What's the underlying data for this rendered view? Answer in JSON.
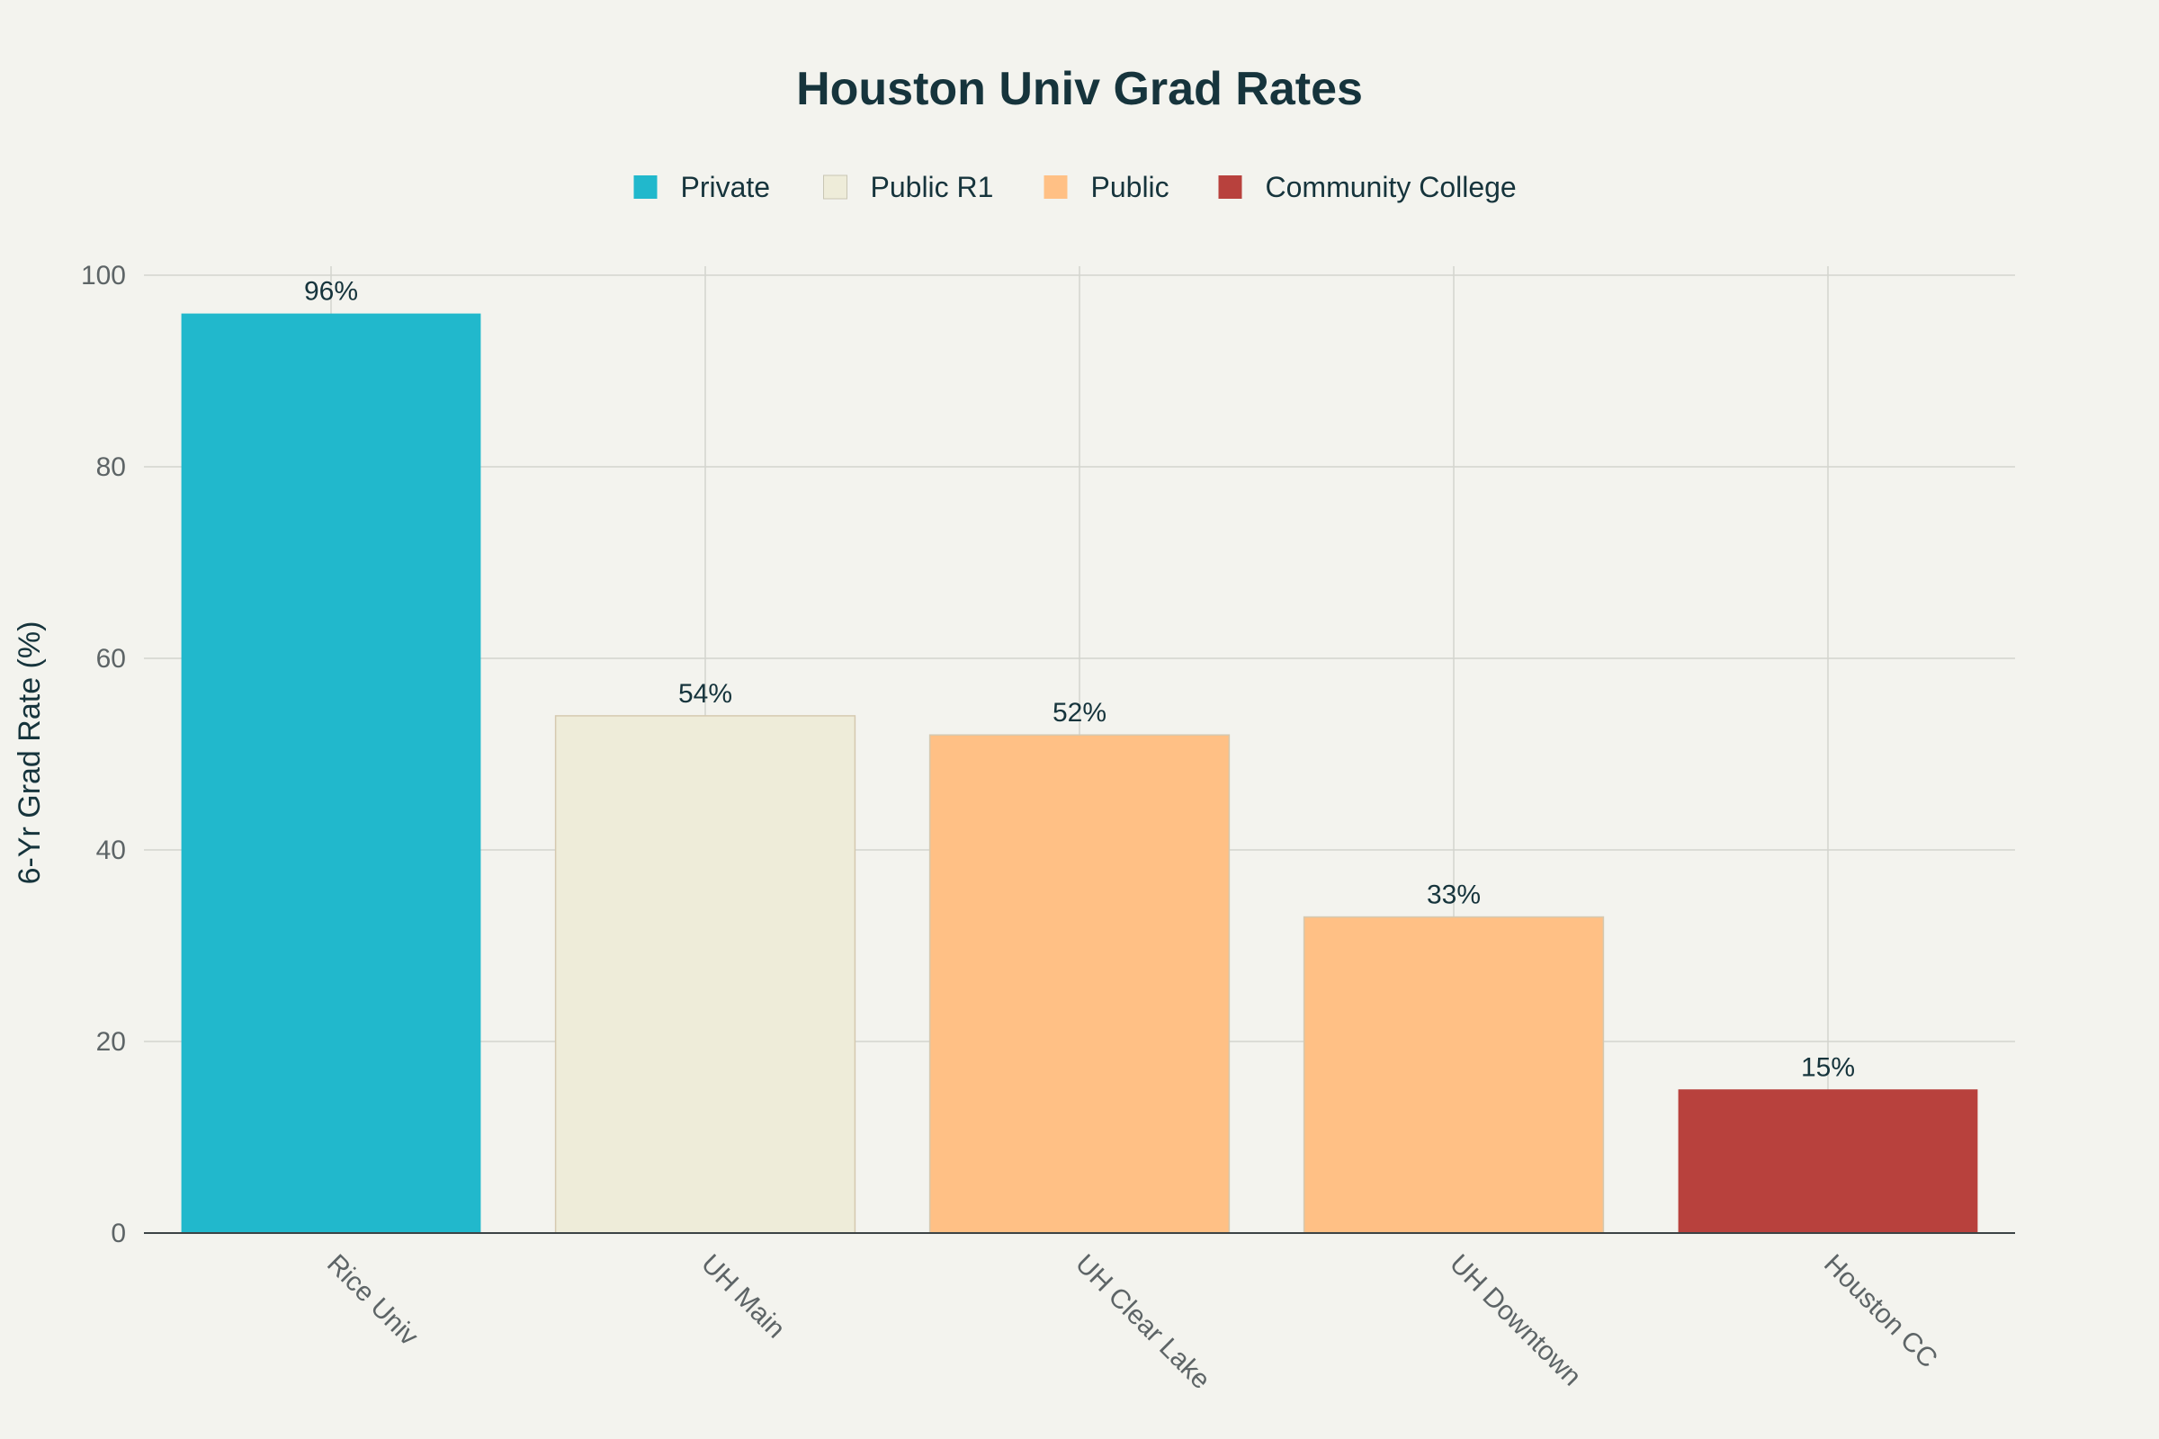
{
  "chart_data": {
    "type": "bar",
    "title": "Houston Univ Grad Rates",
    "ylabel": "6-Yr Grad Rate (%)",
    "xlabel": "",
    "ylim": [
      0,
      100
    ],
    "yticks": [
      0,
      20,
      40,
      60,
      80,
      100
    ],
    "grid": true,
    "legend_position": "top-center",
    "categories": [
      "Rice Univ",
      "UH Main",
      "UH Clear Lake",
      "UH Downtown",
      "Houston CC"
    ],
    "values": [
      96,
      54,
      52,
      33,
      15
    ],
    "data_labels": [
      "96%",
      "54%",
      "52%",
      "33%",
      "15%"
    ],
    "bar_groups": [
      "Private",
      "Public R1",
      "Public",
      "Public",
      "Community College"
    ],
    "legend": [
      {
        "name": "Private",
        "color": "#21b8cc"
      },
      {
        "name": "Public R1",
        "color": "#eeecd9"
      },
      {
        "name": "Public",
        "color": "#ffc085"
      },
      {
        "name": "Community College",
        "color": "#b8413d"
      }
    ]
  }
}
